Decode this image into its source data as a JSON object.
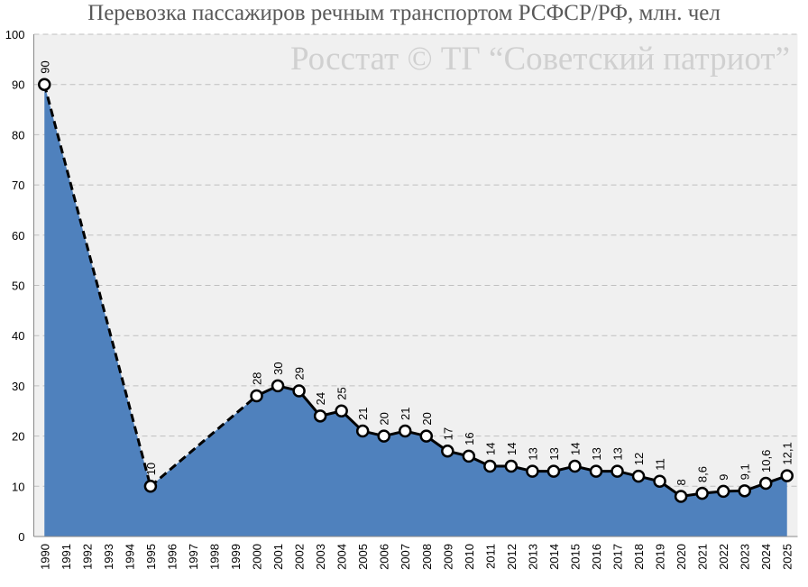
{
  "chart_data": {
    "type": "area",
    "title": "Перевозка пассажиров речным транспортом РСФСР/РФ, млн. чел",
    "annotation": "Росстат © ТГ “Советский патриот”",
    "categories": [
      "1990",
      "1991",
      "1992",
      "1993",
      "1994",
      "1995",
      "1996",
      "1997",
      "1998",
      "1999",
      "2000",
      "2001",
      "2002",
      "2003",
      "2004",
      "2005",
      "2006",
      "2007",
      "2008",
      "2009",
      "2010",
      "2011",
      "2012",
      "2013",
      "2014",
      "2015",
      "2016",
      "2017",
      "2018",
      "2019",
      "2020",
      "2021",
      "2022",
      "2023",
      "2024",
      "2025"
    ],
    "values": [
      90,
      null,
      null,
      null,
      null,
      10,
      null,
      null,
      null,
      null,
      28,
      30,
      29,
      24,
      25,
      21,
      20,
      21,
      20,
      17,
      16,
      14,
      14,
      13,
      13,
      14,
      13,
      13,
      12,
      11,
      8,
      8.6,
      9,
      9.1,
      10.6,
      12.1
    ],
    "value_labels": [
      "90",
      null,
      null,
      null,
      null,
      "10",
      null,
      null,
      null,
      null,
      "28",
      "30",
      "29",
      "24",
      "25",
      "21",
      "20",
      "21",
      "20",
      "17",
      "16",
      "14",
      "14",
      "13",
      "13",
      "14",
      "13",
      "13",
      "12",
      "11",
      "8",
      "8,6",
      "9",
      "9,1",
      "10,6",
      "12,1"
    ],
    "color": "#4f81bd",
    "ylim": [
      0,
      100
    ],
    "yticks": [
      0,
      10,
      20,
      30,
      40,
      50,
      60,
      70,
      80,
      90,
      100
    ],
    "grid": true
  }
}
